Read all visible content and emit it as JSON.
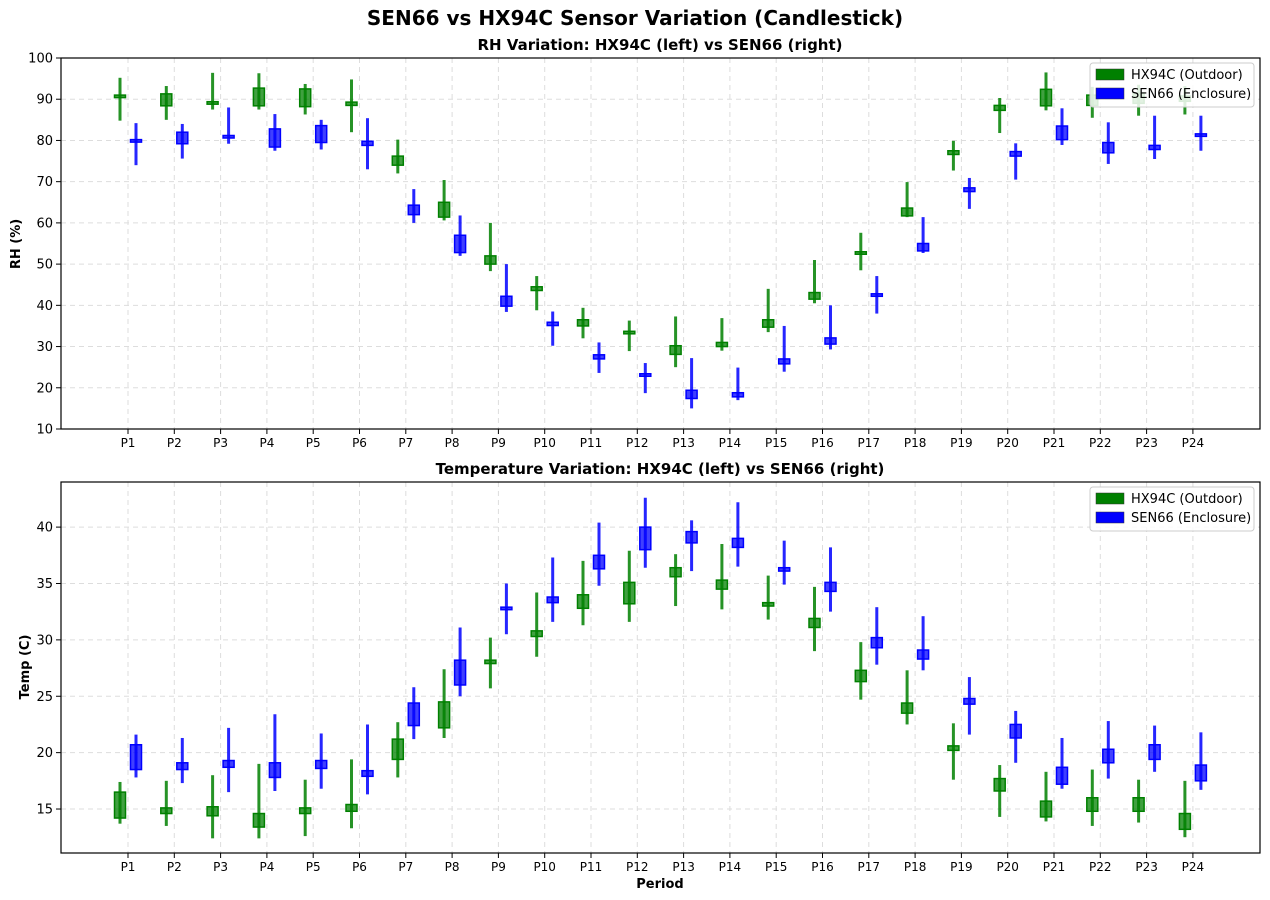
{
  "suptitle": "SEN66 vs HX94C Sensor Variation (Candlestick)",
  "legend_labels": [
    "HX94C (Outdoor)",
    "SEN66 (Enclosure)"
  ],
  "colors": {
    "hx94c": "#008000",
    "sen66": "#0000ff"
  },
  "chart_data": [
    {
      "type": "candlestick",
      "title": "RH Variation: HX94C (left) vs SEN66 (right)",
      "xlabel": "",
      "ylabel": "RH (%)",
      "ylim": [
        10,
        100
      ],
      "yticks": [
        10,
        20,
        30,
        40,
        50,
        60,
        70,
        80,
        90,
        100
      ],
      "grid": true,
      "legend_position": "upper-right",
      "categories": [
        "P1",
        "P2",
        "P3",
        "P4",
        "P5",
        "P6",
        "P7",
        "P8",
        "P9",
        "P10",
        "P11",
        "P12",
        "P13",
        "P14",
        "P15",
        "P16",
        "P17",
        "P18",
        "P19",
        "P20",
        "P21",
        "P22",
        "P23",
        "P24"
      ],
      "series": [
        {
          "name": "HX94C (Outdoor)",
          "ohlc": [
            [
              91.0,
              95.2,
              84.8,
              90.6
            ],
            [
              91.3,
              93.2,
              85.0,
              88.4
            ],
            [
              89.4,
              96.4,
              87.5,
              89.0
            ],
            [
              92.7,
              96.3,
              87.5,
              88.4
            ],
            [
              92.5,
              93.7,
              86.3,
              88.2
            ],
            [
              89.3,
              94.8,
              82.0,
              88.5
            ],
            [
              76.2,
              80.2,
              72.0,
              74.0
            ],
            [
              65.0,
              70.4,
              60.6,
              61.4
            ],
            [
              52.0,
              60.0,
              48.3,
              50.0
            ],
            [
              44.5,
              47.1,
              38.8,
              43.6
            ],
            [
              36.5,
              39.4,
              32.0,
              35.0
            ],
            [
              33.7,
              36.3,
              28.9,
              33.3
            ],
            [
              30.2,
              37.3,
              25.0,
              28.1
            ],
            [
              31.0,
              36.9,
              29.0,
              30.0
            ],
            [
              36.5,
              44.0,
              33.5,
              34.7
            ],
            [
              43.1,
              51.0,
              40.5,
              41.5
            ],
            [
              53.0,
              57.6,
              48.5,
              52.6
            ],
            [
              63.6,
              69.9,
              61.4,
              61.7
            ],
            [
              77.5,
              79.9,
              72.7,
              76.6
            ],
            [
              88.5,
              90.3,
              81.8,
              87.3
            ],
            [
              92.4,
              96.5,
              87.3,
              88.4
            ],
            [
              91.0,
              93.0,
              85.5,
              88.5
            ],
            [
              91.5,
              93.5,
              86.0,
              89.0
            ],
            [
              90.8,
              93.2,
              86.3,
              89.5
            ]
          ]
        },
        {
          "name": "SEN66 (Enclosure)",
          "ohlc": [
            [
              80.2,
              84.2,
              74.0,
              80.0
            ],
            [
              82.0,
              84.0,
              75.6,
              79.2
            ],
            [
              81.2,
              88.0,
              79.2,
              80.9
            ],
            [
              82.8,
              86.4,
              77.5,
              78.4
            ],
            [
              83.6,
              85.0,
              77.8,
              79.5
            ],
            [
              79.8,
              85.4,
              73.0,
              78.8
            ],
            [
              64.3,
              68.2,
              60.0,
              62.0
            ],
            [
              57.0,
              61.8,
              52.0,
              52.8
            ],
            [
              42.2,
              50.0,
              38.4,
              39.8
            ],
            [
              35.9,
              38.5,
              30.2,
              35.1
            ],
            [
              28.0,
              31.0,
              23.6,
              27.0
            ],
            [
              23.4,
              26.0,
              18.7,
              23.0
            ],
            [
              19.4,
              27.2,
              15.0,
              17.4
            ],
            [
              18.8,
              24.9,
              17.0,
              17.8
            ],
            [
              27.0,
              35.0,
              23.9,
              25.8
            ],
            [
              32.1,
              40.0,
              29.3,
              30.6
            ],
            [
              42.8,
              47.1,
              38.0,
              42.4
            ],
            [
              55.0,
              61.4,
              52.7,
              53.2
            ],
            [
              68.5,
              70.9,
              63.4,
              67.6
            ],
            [
              77.3,
              79.3,
              70.5,
              76.2
            ],
            [
              83.5,
              87.8,
              78.9,
              80.2
            ],
            [
              79.5,
              84.4,
              74.3,
              77.0
            ],
            [
              78.8,
              86.0,
              75.5,
              77.8
            ],
            [
              81.6,
              86.0,
              77.5,
              81.0
            ]
          ]
        }
      ]
    },
    {
      "type": "candlestick",
      "title": "Temperature Variation: HX94C (left) vs SEN66 (right)",
      "xlabel": "Period",
      "ylabel": "Temp (C)",
      "ylim": [
        11.1,
        44.0
      ],
      "yticks": [
        15,
        20,
        25,
        30,
        35,
        40
      ],
      "grid": true,
      "legend_position": "upper-right",
      "categories": [
        "P1",
        "P2",
        "P3",
        "P4",
        "P5",
        "P6",
        "P7",
        "P8",
        "P9",
        "P10",
        "P11",
        "P12",
        "P13",
        "P14",
        "P15",
        "P16",
        "P17",
        "P18",
        "P19",
        "P20",
        "P21",
        "P22",
        "P23",
        "P24"
      ],
      "series": [
        {
          "name": "HX94C (Outdoor)",
          "ohlc": [
            [
              16.5,
              17.4,
              13.7,
              14.2
            ],
            [
              15.1,
              17.5,
              13.5,
              14.6
            ],
            [
              15.2,
              18.0,
              12.4,
              14.4
            ],
            [
              14.6,
              19.0,
              12.4,
              13.4
            ],
            [
              15.1,
              17.6,
              12.6,
              14.6
            ],
            [
              15.4,
              19.4,
              13.3,
              14.8
            ],
            [
              21.2,
              22.7,
              17.8,
              19.4
            ],
            [
              24.5,
              27.4,
              21.3,
              22.2
            ],
            [
              28.2,
              30.2,
              25.7,
              27.9
            ],
            [
              30.8,
              34.2,
              28.5,
              30.3
            ],
            [
              34.0,
              37.0,
              31.3,
              32.8
            ],
            [
              35.1,
              37.9,
              31.6,
              33.2
            ],
            [
              36.4,
              37.6,
              33.0,
              35.6
            ],
            [
              35.3,
              38.5,
              32.7,
              34.5
            ],
            [
              33.3,
              35.7,
              31.8,
              33.0
            ],
            [
              31.9,
              34.7,
              29.0,
              31.1
            ],
            [
              27.3,
              29.8,
              24.7,
              26.3
            ],
            [
              24.4,
              27.3,
              22.5,
              23.5
            ],
            [
              20.6,
              22.6,
              17.6,
              20.2
            ],
            [
              17.7,
              18.9,
              14.3,
              16.6
            ],
            [
              15.7,
              18.3,
              13.9,
              14.3
            ],
            [
              16.0,
              18.5,
              13.5,
              14.8
            ],
            [
              16.0,
              17.6,
              13.8,
              14.8
            ],
            [
              14.6,
              17.5,
              12.5,
              13.2
            ]
          ]
        },
        {
          "name": "SEN66 (Enclosure)",
          "ohlc": [
            [
              20.7,
              21.6,
              17.8,
              18.5
            ],
            [
              19.1,
              21.3,
              17.3,
              18.5
            ],
            [
              19.3,
              22.2,
              16.5,
              18.7
            ],
            [
              19.1,
              23.4,
              16.6,
              17.8
            ],
            [
              19.3,
              21.7,
              16.8,
              18.6
            ],
            [
              18.4,
              22.5,
              16.3,
              17.9
            ],
            [
              24.4,
              25.8,
              21.2,
              22.4
            ],
            [
              28.2,
              31.1,
              25.0,
              26.0
            ],
            [
              32.9,
              35.0,
              30.5,
              32.7
            ],
            [
              33.8,
              37.3,
              31.6,
              33.3
            ],
            [
              37.5,
              40.4,
              34.8,
              36.3
            ],
            [
              40.0,
              42.6,
              36.4,
              38.0
            ],
            [
              39.6,
              40.6,
              36.1,
              38.6
            ],
            [
              39.0,
              42.2,
              36.5,
              38.2
            ],
            [
              36.4,
              38.8,
              34.9,
              36.1
            ],
            [
              35.1,
              38.2,
              32.5,
              34.3
            ],
            [
              30.2,
              32.9,
              27.8,
              29.3
            ],
            [
              29.1,
              32.1,
              27.3,
              28.3
            ],
            [
              24.8,
              26.7,
              21.6,
              24.3
            ],
            [
              22.5,
              23.7,
              19.1,
              21.3
            ],
            [
              18.7,
              21.3,
              16.8,
              17.2
            ],
            [
              20.3,
              22.8,
              17.7,
              19.1
            ],
            [
              20.7,
              22.4,
              18.3,
              19.4
            ],
            [
              18.9,
              21.8,
              16.7,
              17.5
            ]
          ]
        }
      ]
    }
  ]
}
